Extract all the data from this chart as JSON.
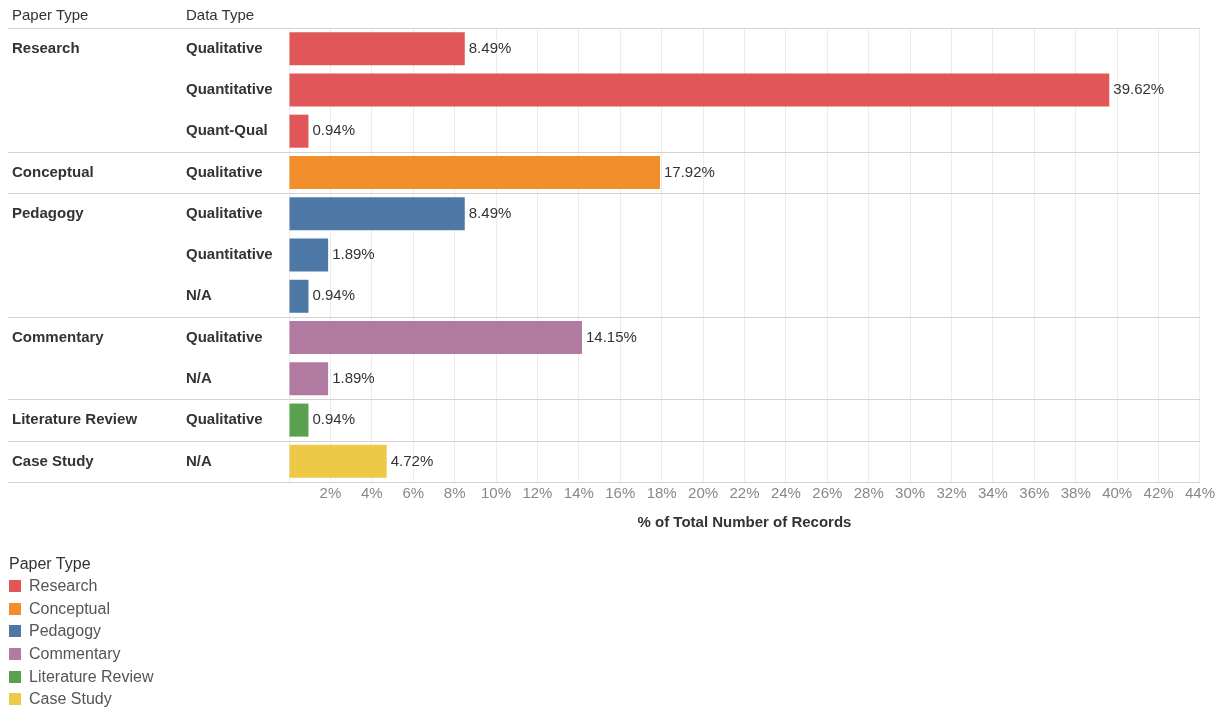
{
  "chart_data": {
    "type": "bar",
    "orientation": "horizontal",
    "stacked": true,
    "xlabel": "% of Total Number of Records",
    "ylabel": "Data Type",
    "legend_title": "Paper Type",
    "annotations": [
      "Paper Type"
    ],
    "categories": [
      "Qualitative",
      "Quantitative",
      "Quant-Qual",
      "Qualitative",
      "Qualitative",
      "Quantitative",
      "N/A",
      "Qualitative",
      "N/A",
      "Qualitative",
      "N/A"
    ],
    "series": [
      {
        "name": "Research",
        "color": "#e15759",
        "values": [
          8.49,
          39.62,
          0.94,
          null,
          null,
          null,
          null,
          null,
          null,
          null,
          null
        ],
        "value_labels": [
          "8.49%",
          "39.62%",
          "0.94%",
          null,
          null,
          null,
          null,
          null,
          null,
          null,
          null
        ]
      },
      {
        "name": "Conceptual",
        "color": "#f28e2b",
        "values": [
          null,
          null,
          null,
          17.92,
          null,
          null,
          null,
          null,
          null,
          null,
          null
        ],
        "value_labels": [
          null,
          null,
          null,
          "17.92%",
          null,
          null,
          null,
          null,
          null,
          null,
          null
        ]
      },
      {
        "name": "Pedagogy",
        "color": "#4e79a7",
        "values": [
          null,
          null,
          null,
          null,
          8.49,
          1.89,
          0.94,
          null,
          null,
          null,
          null
        ],
        "value_labels": [
          null,
          null,
          null,
          null,
          "8.49%",
          "1.89%",
          "0.94%",
          null,
          null,
          null,
          null
        ]
      },
      {
        "name": "Commentary",
        "color": "#b07aa1",
        "values": [
          null,
          null,
          null,
          null,
          null,
          null,
          null,
          14.15,
          1.89,
          null,
          null
        ],
        "value_labels": [
          null,
          null,
          null,
          null,
          null,
          null,
          null,
          "14.15%",
          "1.89%",
          null,
          null
        ]
      },
      {
        "name": "Literature Review",
        "color": "#59a14f",
        "values": [
          null,
          null,
          null,
          null,
          null,
          null,
          null,
          null,
          null,
          0.94,
          null
        ],
        "value_labels": [
          null,
          null,
          null,
          null,
          null,
          null,
          null,
          null,
          null,
          "0.94%",
          null
        ]
      },
      {
        "name": "Case Study",
        "color": "#edc948",
        "values": [
          null,
          null,
          null,
          null,
          null,
          null,
          null,
          null,
          null,
          null,
          4.72
        ],
        "value_labels": [
          null,
          null,
          null,
          null,
          null,
          null,
          null,
          null,
          null,
          null,
          "4.72%"
        ]
      }
    ],
    "xlim": [
      0,
      44
    ],
    "xticks": [
      {
        "value": 0,
        "label": null
      },
      {
        "value": 2,
        "label": "2%"
      },
      {
        "value": 4,
        "label": "4%"
      },
      {
        "value": 6,
        "label": "6%"
      },
      {
        "value": 8,
        "label": "8%"
      },
      {
        "value": 10,
        "label": "10%"
      },
      {
        "value": 12,
        "label": "12%"
      },
      {
        "value": 14,
        "label": "14%"
      },
      {
        "value": 16,
        "label": "16%"
      },
      {
        "value": 18,
        "label": "18%"
      },
      {
        "value": 20,
        "label": "20%"
      },
      {
        "value": 22,
        "label": "22%"
      },
      {
        "value": 24,
        "label": "24%"
      },
      {
        "value": 26,
        "label": "26%"
      },
      {
        "value": 28,
        "label": "28%"
      },
      {
        "value": 30,
        "label": "30%"
      },
      {
        "value": 32,
        "label": "32%"
      },
      {
        "value": 34,
        "label": "34%"
      },
      {
        "value": 36,
        "label": "36%"
      },
      {
        "value": 38,
        "label": "38%"
      },
      {
        "value": 40,
        "label": "40%"
      },
      {
        "value": 42,
        "label": "42%"
      },
      {
        "value": 44,
        "label": "44%"
      }
    ],
    "grid": "x",
    "legend": "bottom left"
  }
}
